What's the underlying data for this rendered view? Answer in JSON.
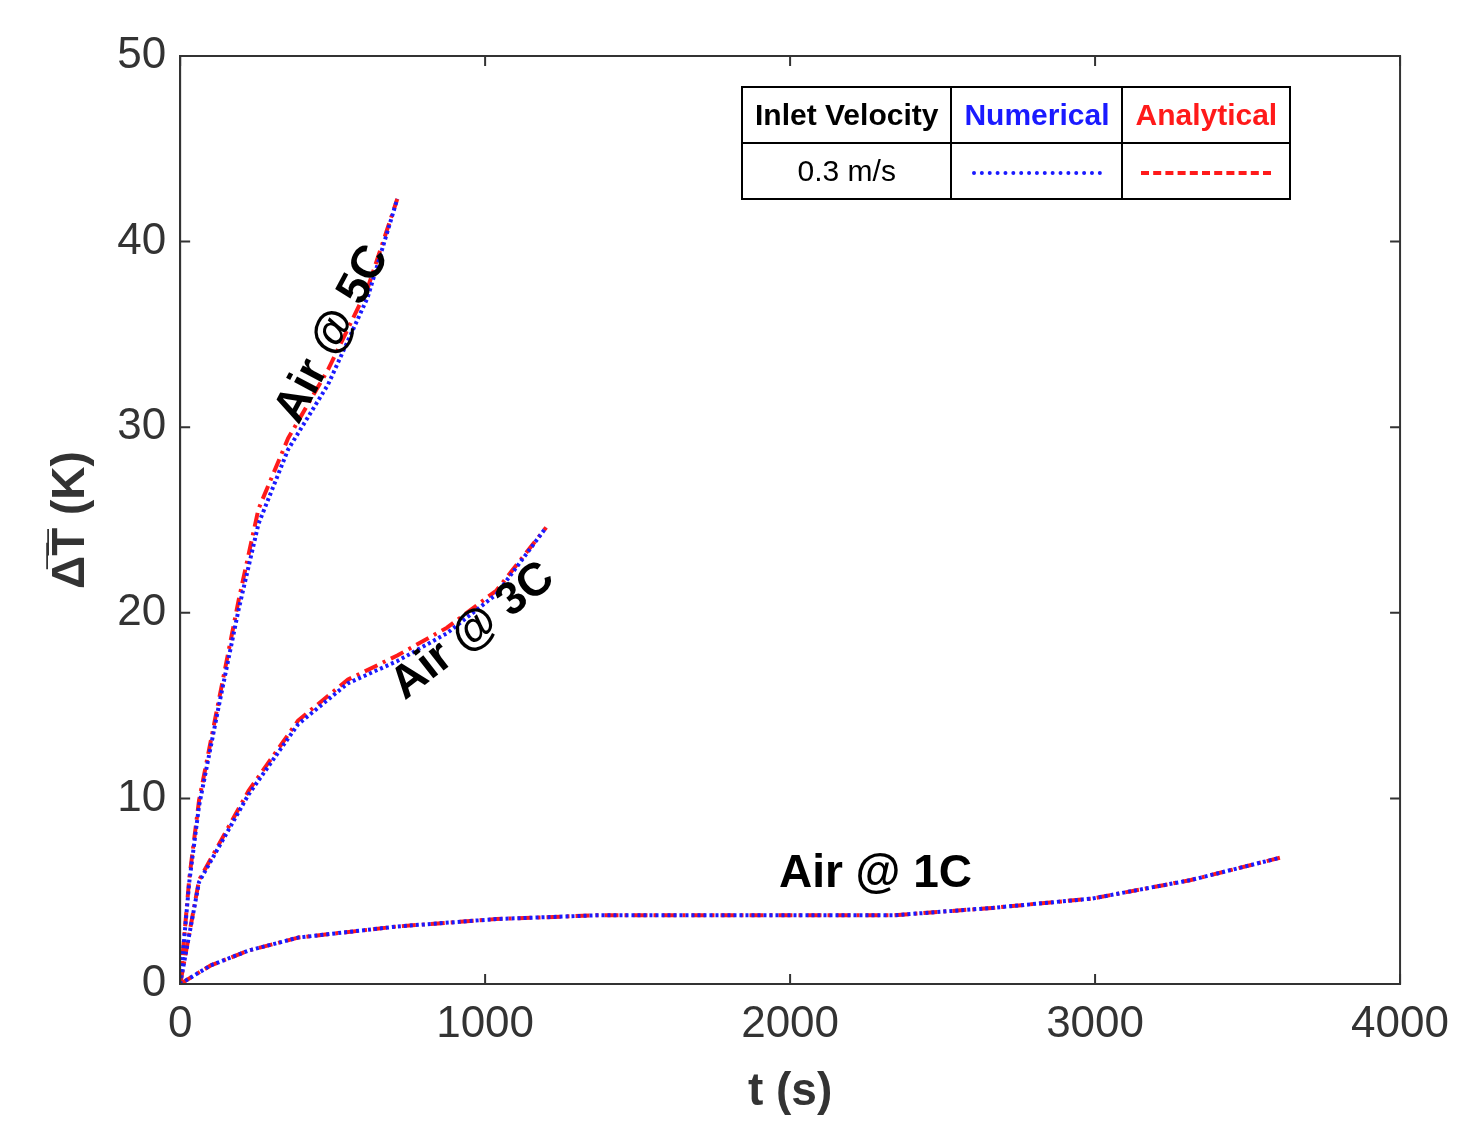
{
  "chart_data": {
    "type": "line",
    "xlabel": "t (s)",
    "ylabel": "Δ̅T̅ (K)",
    "legend_title": "Inlet Velocity",
    "xlim": [
      0,
      4000
    ],
    "xticks": [
      0,
      1000,
      2000,
      3000,
      4000
    ],
    "ylim": [
      0,
      50
    ],
    "yticks": [
      0,
      10,
      20,
      30,
      40,
      50
    ],
    "grid": false,
    "legend": "top right",
    "marker": "none",
    "series": [
      {
        "name": "Numerical",
        "color": "#1a1aff",
        "line_style": "dotted",
        "x": [
          0,
          30,
          62,
          127,
          192,
          257,
          354,
          485,
          615,
          712
        ],
        "values": [
          0,
          5.5,
          9.6,
          15.0,
          20.2,
          24.8,
          28.8,
          32.3,
          37.0,
          42.3
        ]
      },
      {
        "name": "Analytical",
        "color": "#ff1a1a",
        "line_style": "dashed",
        "x": [
          0,
          30,
          62,
          127,
          192,
          257,
          354,
          485,
          615,
          712
        ],
        "values": [
          0,
          5.7,
          9.9,
          15.3,
          20.7,
          25.6,
          29.4,
          33.1,
          37.5,
          42.3
        ]
      },
      {
        "color": "#1a1aff",
        "line_style": "dotted",
        "x": [
          0,
          62,
          224,
          387,
          550,
          712,
          875,
          1037,
          1200
        ],
        "values": [
          0,
          5.5,
          10.2,
          14.0,
          16.2,
          17.4,
          18.9,
          21.0,
          24.6
        ]
      },
      {
        "color": "#ff1a1a",
        "line_style": "dashed",
        "x": [
          0,
          62,
          224,
          387,
          550,
          712,
          875,
          1037,
          1200
        ],
        "values": [
          0,
          5.6,
          10.4,
          14.2,
          16.4,
          17.7,
          19.2,
          21.2,
          24.6
        ]
      },
      {
        "color": "#1a1aff",
        "line_style": "dotted",
        "x": [
          0,
          100,
          224,
          387,
          712,
          1037,
          1363,
          2013,
          2338,
          2663,
          2989,
          3314,
          3606
        ],
        "values": [
          0,
          1.0,
          1.8,
          2.5,
          3.1,
          3.5,
          3.7,
          3.7,
          3.7,
          4.1,
          4.6,
          5.6,
          6.8
        ]
      },
      {
        "color": "#ff1a1a",
        "line_style": "dashed",
        "x": [
          0,
          100,
          224,
          387,
          712,
          1037,
          1363,
          2013,
          2338,
          2663,
          2989,
          3314,
          3606
        ],
        "values": [
          0,
          1.0,
          1.8,
          2.5,
          3.1,
          3.5,
          3.7,
          3.7,
          3.7,
          4.1,
          4.6,
          5.6,
          6.8
        ]
      }
    ],
    "annotations": [
      "0.3 m/s",
      "Air @ 5C",
      "Air @ 3C",
      "Air @ 1C"
    ]
  }
}
